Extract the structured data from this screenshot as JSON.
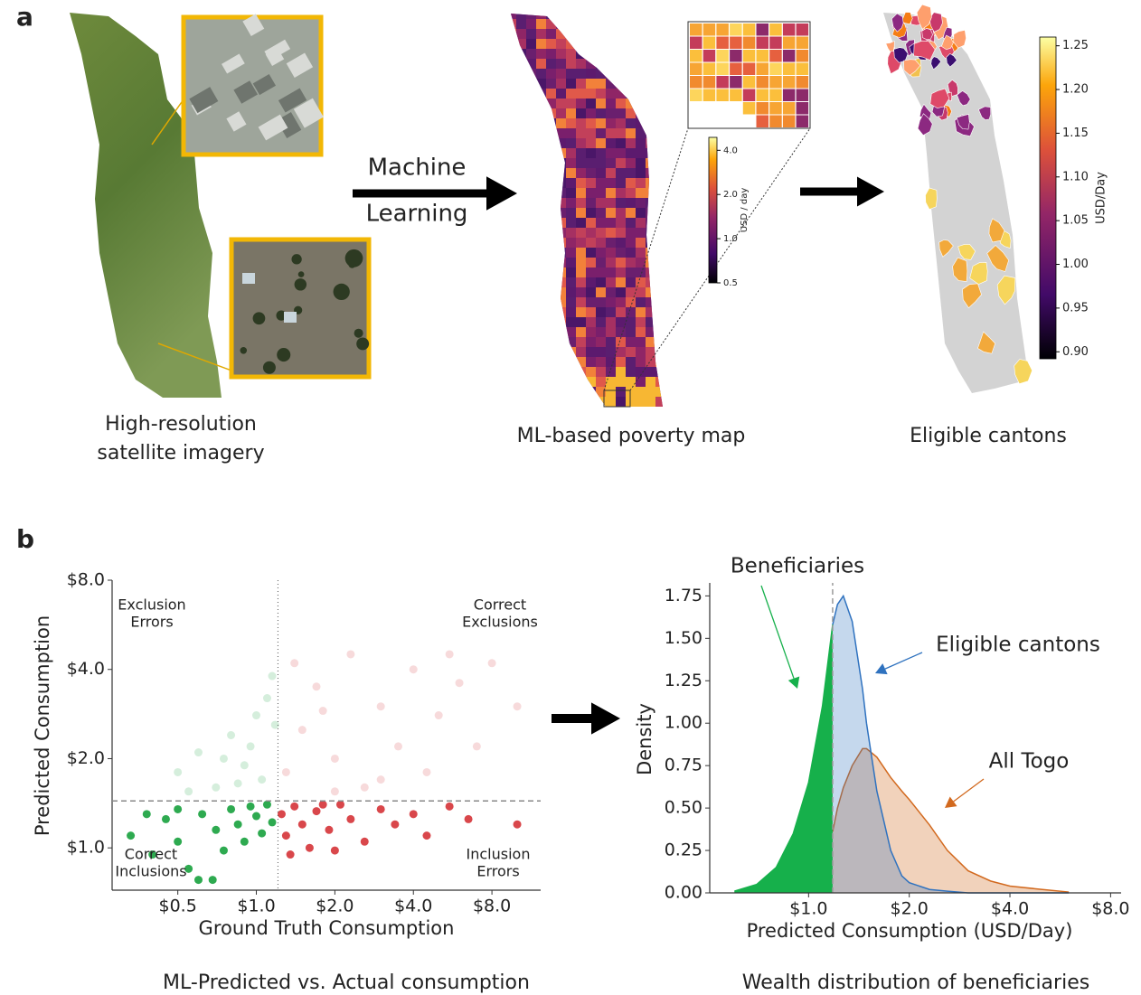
{
  "figure": {
    "panel_a": {
      "label": "a",
      "satellite_caption": [
        "High-resolution",
        "satellite imagery"
      ],
      "arrow_text": [
        "Machine",
        "Learning"
      ],
      "poverty_caption": "ML-based poverty map",
      "cantons_caption": "Eligible cantons",
      "poverty_colorbar": {
        "label": "USD / day",
        "log": true,
        "lim": [
          0.5,
          4.9
        ],
        "ticks": [
          {
            "value": 4,
            "label": "4.0"
          },
          {
            "value": 2,
            "label": "2.0"
          },
          {
            "value": 1,
            "label": "1.0"
          },
          {
            "value": 0.5,
            "label": "0.5"
          }
        ]
      },
      "cantons_colorbar": {
        "label": "USD/Day",
        "log": false,
        "lim": [
          0.892,
          1.26
        ],
        "ticks": [
          {
            "value": 0.9,
            "label": "0.90"
          },
          {
            "value": 0.95,
            "label": "0.95"
          },
          {
            "value": 1,
            "label": "1.00"
          },
          {
            "value": 1.05,
            "label": "1.05"
          },
          {
            "value": 1.1,
            "label": "1.10"
          },
          {
            "value": 1.15,
            "label": "1.15"
          },
          {
            "value": 1.2,
            "label": "1.20"
          },
          {
            "value": 1.25,
            "label": "1.25"
          }
        ]
      }
    },
    "panel_b": {
      "label": "b",
      "scatter_caption": "ML-Predicted vs. Actual consumption",
      "density_caption": "Wealth distribution of beneficiaries"
    }
  },
  "chart_data": [
    {
      "type": "scatter",
      "xlabel": "Ground Truth Consumption",
      "ylabel": "Predicted Consumption",
      "log_x": true,
      "log_y": true,
      "xlim": [
        0.28,
        12.3
      ],
      "ylim": [
        0.72,
        8
      ],
      "xticks": [
        {
          "value": 0.5,
          "label": "$0.5"
        },
        {
          "value": 1,
          "label": "$1.0"
        },
        {
          "value": 2,
          "label": "$2.0"
        },
        {
          "value": 4,
          "label": "$4.0"
        },
        {
          "value": 8,
          "label": "$8.0"
        }
      ],
      "yticks": [
        {
          "value": 1,
          "label": "$1.0"
        },
        {
          "value": 2,
          "label": "$2.0"
        },
        {
          "value": 4,
          "label": "$4.0"
        },
        {
          "value": 8,
          "label": "$8.0"
        }
      ],
      "x_threshold": 1.21,
      "y_threshold": 1.44,
      "annotations": [
        {
          "text": [
            "Exclusion",
            "Errors"
          ],
          "color": "#2eaa50"
        },
        {
          "text": [
            "Correct",
            "Exclusions"
          ],
          "color": "#d9474b"
        },
        {
          "text": [
            "Correct",
            "Inclusions"
          ],
          "color": "#2eaa50"
        },
        {
          "text": [
            "Inclusion",
            "Errors"
          ],
          "color": "#d9474b"
        }
      ],
      "series": [
        {
          "color": "#2eaa50",
          "opacity": 1,
          "x": [
            0.33,
            0.4,
            0.45,
            0.5,
            0.55,
            0.6,
            0.62,
            0.7,
            0.75,
            0.8,
            0.85,
            0.9,
            0.95,
            1.0,
            1.05,
            1.1,
            1.15,
            0.68,
            0.5,
            0.38
          ],
          "y": [
            1.1,
            0.95,
            1.25,
            1.05,
            0.85,
            0.78,
            1.3,
            1.15,
            0.98,
            1.35,
            1.2,
            1.05,
            1.38,
            1.28,
            1.12,
            1.4,
            1.22,
            0.78,
            1.35,
            1.3
          ]
        },
        {
          "color": "#d9474b",
          "opacity": 1,
          "x": [
            1.25,
            1.3,
            1.4,
            1.5,
            1.6,
            1.7,
            1.9,
            2.1,
            2.3,
            2.6,
            3.0,
            3.4,
            4.0,
            4.5,
            5.5,
            6.5,
            10,
            1.35,
            2.0,
            1.8
          ],
          "y": [
            1.3,
            1.1,
            1.38,
            1.2,
            1.0,
            1.33,
            1.15,
            1.4,
            1.25,
            1.05,
            1.35,
            1.2,
            1.3,
            1.1,
            1.38,
            1.25,
            1.2,
            0.95,
            0.98,
            1.4
          ]
        },
        {
          "color": "#2eaa50",
          "opacity": 0.2,
          "x": [
            0.5,
            0.6,
            0.7,
            0.8,
            0.9,
            1.0,
            1.05,
            1.1,
            1.15,
            0.75,
            0.95,
            0.55,
            0.85,
            1.18
          ],
          "y": [
            1.8,
            2.1,
            1.6,
            2.4,
            1.9,
            2.8,
            1.7,
            3.2,
            3.8,
            2.0,
            2.2,
            1.55,
            1.65,
            2.6
          ]
        },
        {
          "color": "#d9474b",
          "opacity": 0.2,
          "x": [
            1.3,
            1.5,
            1.7,
            2.0,
            2.3,
            2.6,
            3.0,
            3.5,
            4.0,
            4.5,
            5.0,
            6.0,
            7.0,
            8.0,
            10,
            1.4,
            2.0,
            3.0,
            1.8,
            5.5
          ],
          "y": [
            1.8,
            2.5,
            3.5,
            2.0,
            4.5,
            1.6,
            3.0,
            2.2,
            4.0,
            1.8,
            2.8,
            3.6,
            2.2,
            4.2,
            3.0,
            4.2,
            1.55,
            1.7,
            2.9,
            4.5
          ]
        }
      ]
    },
    {
      "type": "area",
      "xlabel": "Predicted Consumption (USD/Day)",
      "ylabel": "Density",
      "log_x": true,
      "xlim": [
        0.5,
        8.6
      ],
      "ylim": [
        0,
        1.8
      ],
      "xticks": [
        {
          "value": 1,
          "label": "$1.0"
        },
        {
          "value": 2,
          "label": "$2.0"
        },
        {
          "value": 4,
          "label": "$4.0"
        },
        {
          "value": 8,
          "label": "$8.0"
        }
      ],
      "yticks": [
        {
          "value": 0,
          "label": "0.00"
        },
        {
          "value": 0.25,
          "label": "0.25"
        },
        {
          "value": 0.5,
          "label": "0.50"
        },
        {
          "value": 0.75,
          "label": "0.75"
        },
        {
          "value": 1,
          "label": "1.00"
        },
        {
          "value": 1.25,
          "label": "1.25"
        },
        {
          "value": 1.5,
          "label": "1.50"
        },
        {
          "value": 1.75,
          "label": "1.75"
        }
      ],
      "threshold": 1.18,
      "x": [
        0.6,
        0.7,
        0.8,
        0.9,
        1.0,
        1.1,
        1.18,
        1.22,
        1.27,
        1.35,
        1.45,
        1.49,
        1.6,
        1.76,
        1.9,
        2.0,
        2.3,
        2.6,
        3.0,
        3.5,
        4.0,
        5.0,
        6.0
      ],
      "series": [
        {
          "name": "Beneficiaries",
          "color": "#16b04b",
          "fill_opacity": 1,
          "values": [
            0.01,
            0.05,
            0.15,
            0.35,
            0.65,
            1.1,
            1.58,
            null,
            null,
            null,
            null,
            null,
            null,
            null,
            null,
            null,
            null,
            null,
            null,
            null,
            null,
            null,
            null
          ]
        },
        {
          "name": "Eligible cantons",
          "color": "#2f72bf",
          "fill_opacity": 0.28,
          "values": [
            null,
            null,
            null,
            null,
            null,
            null,
            1.58,
            1.7,
            1.75,
            1.6,
            1.2,
            1.0,
            0.6,
            0.25,
            0.1,
            0.06,
            0.02,
            0.01,
            0,
            0,
            0,
            0,
            0
          ]
        },
        {
          "name": "All Togo",
          "color": "#d2691e",
          "fill_opacity": 0.3,
          "values": [
            null,
            null,
            null,
            null,
            null,
            null,
            0.36,
            0.5,
            0.62,
            0.75,
            0.85,
            0.85,
            0.8,
            0.68,
            0.6,
            0.55,
            0.4,
            0.25,
            0.13,
            0.07,
            0.04,
            0.02,
            0.005
          ]
        }
      ]
    }
  ]
}
